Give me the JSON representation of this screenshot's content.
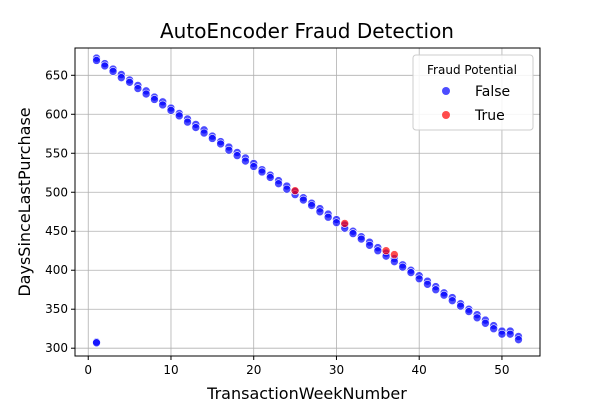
{
  "chart_data": {
    "type": "scatter",
    "title": "AutoEncoder Fraud Detection",
    "xlabel": "TransactionWeekNumber",
    "ylabel": "DaysSinceLastPurchase",
    "xlim": [
      -1.6,
      54.6
    ],
    "ylim": [
      290,
      685
    ],
    "xticks": [
      0,
      10,
      20,
      30,
      40,
      50
    ],
    "yticks": [
      300,
      350,
      400,
      450,
      500,
      550,
      600,
      650
    ],
    "grid": true,
    "legend": {
      "title": "Fraud Potential",
      "placement": "top-right",
      "entries": [
        {
          "label": "False",
          "color": "#0000ff"
        },
        {
          "label": "True",
          "color": "#ff0000"
        }
      ]
    },
    "series": [
      {
        "name": "False",
        "color": "#0000ff",
        "points": [
          [
            1,
            672
          ],
          [
            1,
            669
          ],
          [
            1,
            308
          ],
          [
            1,
            307
          ],
          [
            2,
            665
          ],
          [
            2,
            662
          ],
          [
            3,
            658
          ],
          [
            3,
            655
          ],
          [
            4,
            651
          ],
          [
            4,
            647
          ],
          [
            5,
            644
          ],
          [
            5,
            641
          ],
          [
            6,
            637
          ],
          [
            6,
            633
          ],
          [
            7,
            630
          ],
          [
            7,
            626
          ],
          [
            8,
            622
          ],
          [
            8,
            619
          ],
          [
            9,
            616
          ],
          [
            9,
            612
          ],
          [
            10,
            608
          ],
          [
            10,
            605
          ],
          [
            11,
            601
          ],
          [
            11,
            598
          ],
          [
            12,
            594
          ],
          [
            12,
            590
          ],
          [
            13,
            587
          ],
          [
            13,
            583
          ],
          [
            14,
            580
          ],
          [
            14,
            576
          ],
          [
            15,
            572
          ],
          [
            15,
            569
          ],
          [
            16,
            565
          ],
          [
            16,
            562
          ],
          [
            17,
            558
          ],
          [
            17,
            554
          ],
          [
            18,
            551
          ],
          [
            18,
            547
          ],
          [
            19,
            544
          ],
          [
            19,
            540
          ],
          [
            20,
            537
          ],
          [
            20,
            533
          ],
          [
            21,
            529
          ],
          [
            21,
            526
          ],
          [
            22,
            522
          ],
          [
            22,
            519
          ],
          [
            23,
            515
          ],
          [
            23,
            511
          ],
          [
            24,
            508
          ],
          [
            24,
            504
          ],
          [
            25,
            501
          ],
          [
            25,
            497
          ],
          [
            26,
            493
          ],
          [
            26,
            490
          ],
          [
            27,
            486
          ],
          [
            27,
            483
          ],
          [
            28,
            479
          ],
          [
            28,
            475
          ],
          [
            29,
            472
          ],
          [
            29,
            468
          ],
          [
            30,
            465
          ],
          [
            30,
            461
          ],
          [
            31,
            458
          ],
          [
            31,
            454
          ],
          [
            32,
            450
          ],
          [
            32,
            447
          ],
          [
            33,
            443
          ],
          [
            33,
            440
          ],
          [
            34,
            436
          ],
          [
            34,
            432
          ],
          [
            35,
            429
          ],
          [
            35,
            425
          ],
          [
            36,
            422
          ],
          [
            36,
            418
          ],
          [
            37,
            415
          ],
          [
            37,
            411
          ],
          [
            38,
            407
          ],
          [
            38,
            404
          ],
          [
            39,
            400
          ],
          [
            39,
            397
          ],
          [
            40,
            393
          ],
          [
            40,
            389
          ],
          [
            41,
            386
          ],
          [
            41,
            382
          ],
          [
            42,
            379
          ],
          [
            42,
            375
          ],
          [
            43,
            371
          ],
          [
            43,
            368
          ],
          [
            44,
            365
          ],
          [
            44,
            361
          ],
          [
            45,
            357
          ],
          [
            45,
            354
          ],
          [
            46,
            350
          ],
          [
            46,
            347
          ],
          [
            47,
            343
          ],
          [
            47,
            339
          ],
          [
            48,
            336
          ],
          [
            48,
            332
          ],
          [
            49,
            329
          ],
          [
            49,
            325
          ],
          [
            50,
            322
          ],
          [
            50,
            318
          ],
          [
            51,
            322
          ],
          [
            51,
            318
          ],
          [
            52,
            315
          ],
          [
            52,
            311
          ]
        ]
      },
      {
        "name": "True",
        "color": "#ff0000",
        "points": [
          [
            25,
            502
          ],
          [
            36,
            425
          ],
          [
            37,
            420
          ],
          [
            31,
            460
          ]
        ]
      }
    ]
  }
}
